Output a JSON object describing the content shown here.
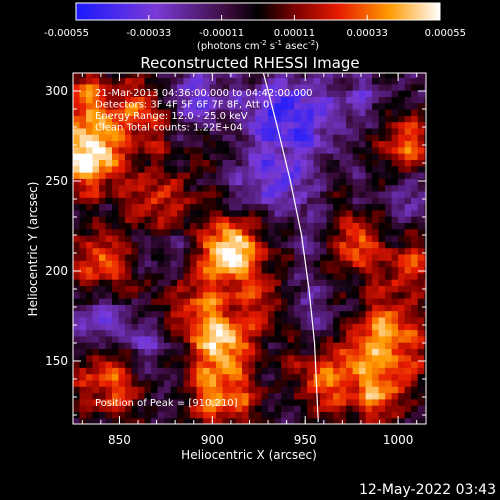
{
  "chart_data": {
    "type": "heatmap",
    "title": "Reconstructed RHESSI Image",
    "xlabel": "Heliocentric X (arcsec)",
    "ylabel": "Heliocentric Y (arcsec)",
    "xlim": [
      825,
      1015
    ],
    "ylim": [
      115,
      310
    ],
    "x_ticks": [
      "850",
      "900",
      "950",
      "1000"
    ],
    "y_ticks": [
      "150",
      "200",
      "250",
      "300"
    ],
    "x_tick_values": [
      850,
      900,
      950,
      1000
    ],
    "y_tick_values": [
      150,
      200,
      250,
      300
    ],
    "colorbar": {
      "ticks": [
        "-0.00055",
        "-0.00033",
        "-0.00011",
        "0.00011",
        "0.00033",
        "0.00055"
      ],
      "range": [
        -0.00055,
        0.00055
      ],
      "unit_parts": [
        "(photons cm",
        "-2",
        " s",
        "-1",
        " asec",
        "-2",
        ")"
      ]
    },
    "annotations": [
      "21-Mar-2013 04:36:00.000 to 04:42:00.000",
      "Detectors: 3F 4F 5F 6F 7F 8F, Att 0",
      "Energy Range: 12.0 - 25.0 keV",
      "Clean    Total counts: 1.22E+04"
    ],
    "peak_label": "Position of Peak = [910,210]",
    "peak": [
      910,
      210
    ],
    "limb_curve": [
      [
        927,
        312
      ],
      [
        935,
        280
      ],
      [
        942,
        250
      ],
      [
        948,
        220
      ],
      [
        952,
        190
      ],
      [
        955,
        160
      ],
      [
        957,
        116
      ]
    ],
    "hotspots": [
      {
        "x": 833,
        "y": 262,
        "v": 0.98
      },
      {
        "x": 910,
        "y": 210,
        "v": 1.0
      },
      {
        "x": 902,
        "y": 163,
        "v": 0.85
      },
      {
        "x": 905,
        "y": 130,
        "v": 0.72
      },
      {
        "x": 842,
        "y": 200,
        "v": 0.6
      },
      {
        "x": 830,
        "y": 295,
        "v": 0.65
      },
      {
        "x": 862,
        "y": 285,
        "v": 0.55
      },
      {
        "x": 845,
        "y": 138,
        "v": 0.62
      },
      {
        "x": 975,
        "y": 215,
        "v": 0.7
      },
      {
        "x": 1003,
        "y": 270,
        "v": 0.62
      },
      {
        "x": 995,
        "y": 165,
        "v": 0.78
      },
      {
        "x": 990,
        "y": 135,
        "v": 0.72
      },
      {
        "x": 875,
        "y": 240,
        "v": 0.5
      },
      {
        "x": 885,
        "y": 185,
        "v": 0.5
      },
      {
        "x": 960,
        "y": 140,
        "v": 0.55
      },
      {
        "x": 935,
        "y": 183,
        "v": 0.45
      },
      {
        "x": 1008,
        "y": 200,
        "v": 0.5
      }
    ],
    "coldspots": [
      {
        "x": 935,
        "y": 290,
        "v": -0.75
      },
      {
        "x": 930,
        "y": 250,
        "v": -0.55
      },
      {
        "x": 890,
        "y": 295,
        "v": -0.5
      },
      {
        "x": 960,
        "y": 215,
        "v": -0.4
      },
      {
        "x": 840,
        "y": 175,
        "v": -0.5
      },
      {
        "x": 868,
        "y": 160,
        "v": -0.35
      },
      {
        "x": 955,
        "y": 275,
        "v": -0.4
      },
      {
        "x": 980,
        "y": 295,
        "v": -0.35
      },
      {
        "x": 1000,
        "y": 240,
        "v": -0.3
      },
      {
        "x": 950,
        "y": 180,
        "v": -0.35
      },
      {
        "x": 880,
        "y": 208,
        "v": -0.3
      }
    ]
  },
  "footer": {
    "timestamp": "12-May-2022 03:43"
  }
}
